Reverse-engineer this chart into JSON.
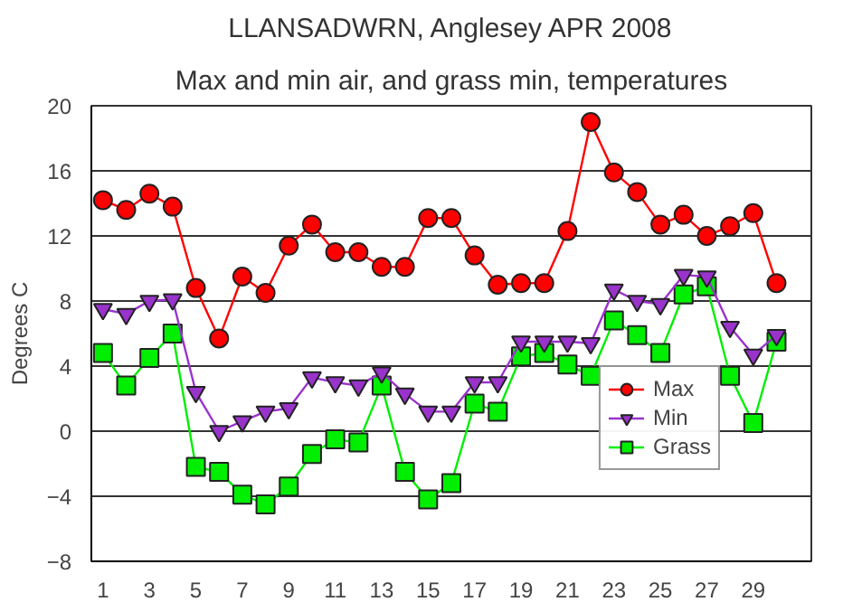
{
  "chart_data": {
    "type": "line",
    "title": "LLANSADWRN, Anglesey APR 2008",
    "subtitle": "Max and min air, and grass min, temperatures",
    "ylabel": "Degrees C",
    "x": [
      1,
      2,
      3,
      4,
      5,
      6,
      7,
      8,
      9,
      10,
      11,
      12,
      13,
      14,
      15,
      16,
      17,
      18,
      19,
      20,
      21,
      22,
      23,
      24,
      25,
      26,
      27,
      28,
      29,
      30
    ],
    "xlim": [
      0.5,
      31.5
    ],
    "xticks": [
      1,
      3,
      5,
      7,
      9,
      11,
      13,
      15,
      17,
      19,
      21,
      23,
      25,
      27,
      29
    ],
    "ylim": [
      -8,
      20
    ],
    "yticks": [
      -8,
      -4,
      0,
      4,
      8,
      12,
      16,
      20
    ],
    "grid": "y",
    "legend": "bottom right",
    "series": [
      {
        "name": "Max",
        "color": "#ff0000",
        "marker": "circle",
        "values": [
          14.2,
          13.6,
          14.6,
          13.8,
          8.8,
          5.7,
          9.5,
          8.5,
          11.4,
          12.7,
          11.0,
          11.0,
          10.1,
          10.1,
          13.1,
          13.1,
          10.8,
          9.0,
          9.1,
          9.1,
          12.3,
          19.0,
          15.9,
          14.7,
          12.7,
          13.3,
          12.0,
          12.6,
          13.4,
          9.1
        ]
      },
      {
        "name": "Min",
        "color": "#9933cc",
        "marker": "triangle",
        "values": [
          7.5,
          7.2,
          8.0,
          8.1,
          2.4,
          0.0,
          0.6,
          1.2,
          1.4,
          3.3,
          3.0,
          2.8,
          3.6,
          2.3,
          1.2,
          1.2,
          3.0,
          3.0,
          5.5,
          5.5,
          5.5,
          5.4,
          8.7,
          8.0,
          7.8,
          9.6,
          9.5,
          6.4,
          4.7,
          5.9
        ]
      },
      {
        "name": "Grass",
        "color": "#00ee00",
        "marker": "square",
        "values": [
          4.8,
          2.8,
          4.5,
          6.0,
          -2.2,
          -2.5,
          -3.9,
          -4.5,
          -3.4,
          -1.4,
          -0.5,
          -0.7,
          2.8,
          -2.5,
          -4.2,
          -3.2,
          1.7,
          1.2,
          4.6,
          4.8,
          4.1,
          3.4,
          6.8,
          5.9,
          4.8,
          8.4,
          8.9,
          3.4,
          0.5,
          5.5
        ]
      }
    ]
  }
}
